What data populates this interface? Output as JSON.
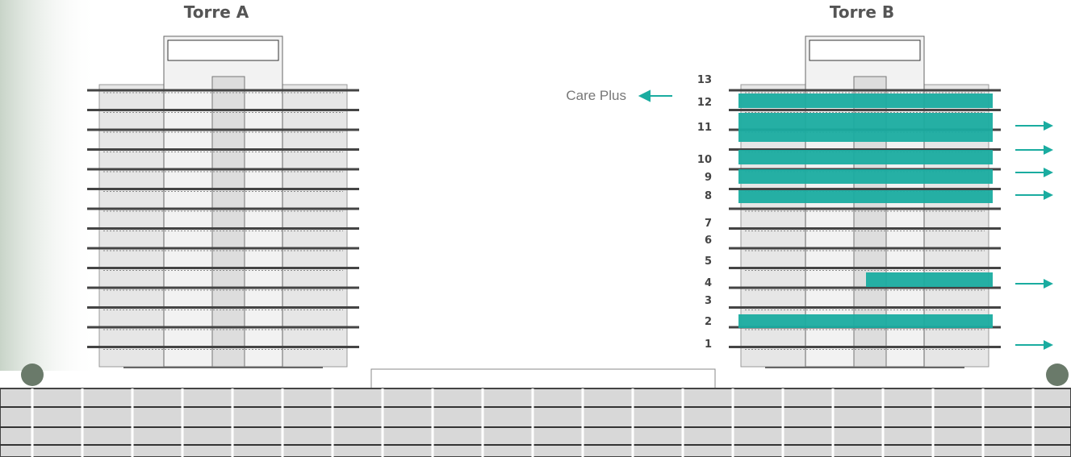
{
  "towers": [
    {
      "label": "Torre A"
    },
    {
      "label": "Torre B"
    }
  ],
  "floors": [
    "13",
    "12",
    "11",
    "10",
    "9",
    "8",
    "7",
    "6",
    "5",
    "4",
    "3",
    "2",
    "1"
  ],
  "tenants": [
    {
      "label": "Care Plus"
    }
  ]
}
